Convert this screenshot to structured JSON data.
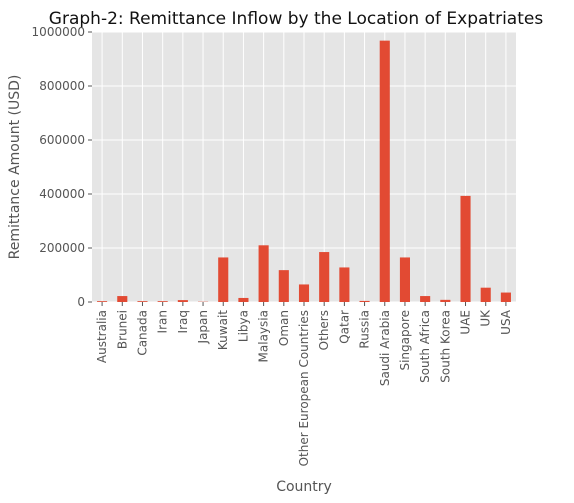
{
  "chart_data": {
    "type": "bar",
    "title": "Graph-2: Remittance Inflow by the Location of Expatriates",
    "xlabel": "Country",
    "ylabel": "Remittance Amount (USD)",
    "ylim": [
      0,
      1000000
    ],
    "yticks": [
      0,
      200000,
      400000,
      600000,
      800000,
      1000000
    ],
    "ytick_labels": [
      "0",
      "200000",
      "400000",
      "600000",
      "800000",
      "1000000"
    ],
    "grid": true,
    "categories": [
      "Australia",
      "Brunei",
      "Canada",
      "Iran",
      "Iraq",
      "Japan",
      "Kuwait",
      "Libya",
      "Malaysia",
      "Oman",
      "Other European Countries",
      "Others",
      "Qatar",
      "Russia",
      "Saudi Arabia",
      "Singapore",
      "South Africa",
      "South Korea",
      "UAE",
      "UK",
      "USA"
    ],
    "values": [
      3000,
      22000,
      3000,
      3000,
      7000,
      1000,
      165000,
      15000,
      210000,
      118000,
      65000,
      185000,
      128000,
      4000,
      968000,
      165000,
      22000,
      8000,
      393000,
      53000,
      35000
    ],
    "colors": {
      "bar": "#E24A33",
      "plot_background": "#E5E5E5"
    }
  }
}
